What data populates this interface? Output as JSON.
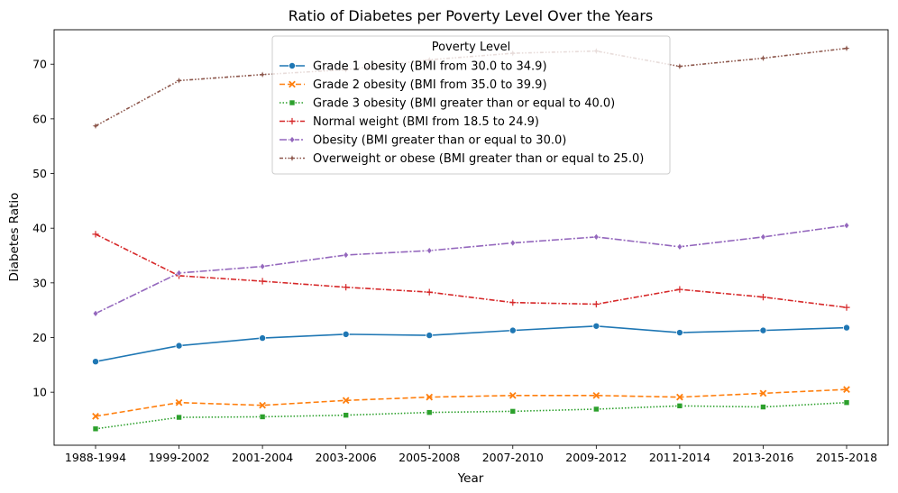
{
  "chart_data": {
    "type": "line",
    "title": "Ratio of Diabetes per Poverty Level Over the Years",
    "xlabel": "Year",
    "ylabel": "Diabetes Ratio",
    "categories": [
      "1988-1994",
      "1999-2002",
      "2001-2004",
      "2003-2006",
      "2005-2008",
      "2007-2010",
      "2009-2012",
      "2011-2014",
      "2013-2016",
      "2015-2018"
    ],
    "ylim": [
      0.3,
      76.3
    ],
    "yticks": [
      10,
      20,
      30,
      40,
      50,
      60,
      70
    ],
    "grid": false,
    "legend": {
      "title": "Poverty Level",
      "placement": "top-center"
    },
    "series": [
      {
        "name": "Grade 1 obesity (BMI from 30.0 to 34.9)",
        "color": "#1f77b4",
        "marker": "circle",
        "dash": "solid",
        "values": [
          15.6,
          18.5,
          19.9,
          20.6,
          20.4,
          21.3,
          22.1,
          20.9,
          21.3,
          21.8
        ]
      },
      {
        "name": "Grade 2 obesity (BMI from 35.0 to 39.9)",
        "color": "#ff7f0e",
        "marker": "x",
        "dash": "dashed",
        "values": [
          5.6,
          8.1,
          7.6,
          8.5,
          9.1,
          9.4,
          9.4,
          9.1,
          9.8,
          10.5
        ]
      },
      {
        "name": "Grade 3 obesity (BMI greater than or equal to 40.0)",
        "color": "#2ca02c",
        "marker": "square",
        "dash": "dotted",
        "values": [
          3.3,
          5.4,
          5.5,
          5.8,
          6.3,
          6.5,
          6.9,
          7.5,
          7.3,
          8.1
        ]
      },
      {
        "name": "Normal weight (BMI from 18.5 to 24.9)",
        "color": "#d62728",
        "marker": "plus",
        "dash": "dashdot",
        "values": [
          38.9,
          31.3,
          30.3,
          29.2,
          28.3,
          26.4,
          26.1,
          28.8,
          27.4,
          25.5
        ]
      },
      {
        "name": "Obesity (BMI greater than or equal to 30.0)",
        "color": "#9467bd",
        "marker": "diamond",
        "dash": "dashdot2",
        "values": [
          24.4,
          31.8,
          33.0,
          35.1,
          35.9,
          37.3,
          38.4,
          36.6,
          38.4,
          40.5
        ]
      },
      {
        "name": "Overweight or obese (BMI greater than or equal to 25.0)",
        "color": "#8c564b",
        "marker": "star",
        "dash": "dashdotdot",
        "values": [
          58.7,
          67.0,
          68.1,
          69.0,
          70.8,
          72.0,
          72.4,
          69.6,
          71.1,
          72.9
        ]
      }
    ]
  }
}
